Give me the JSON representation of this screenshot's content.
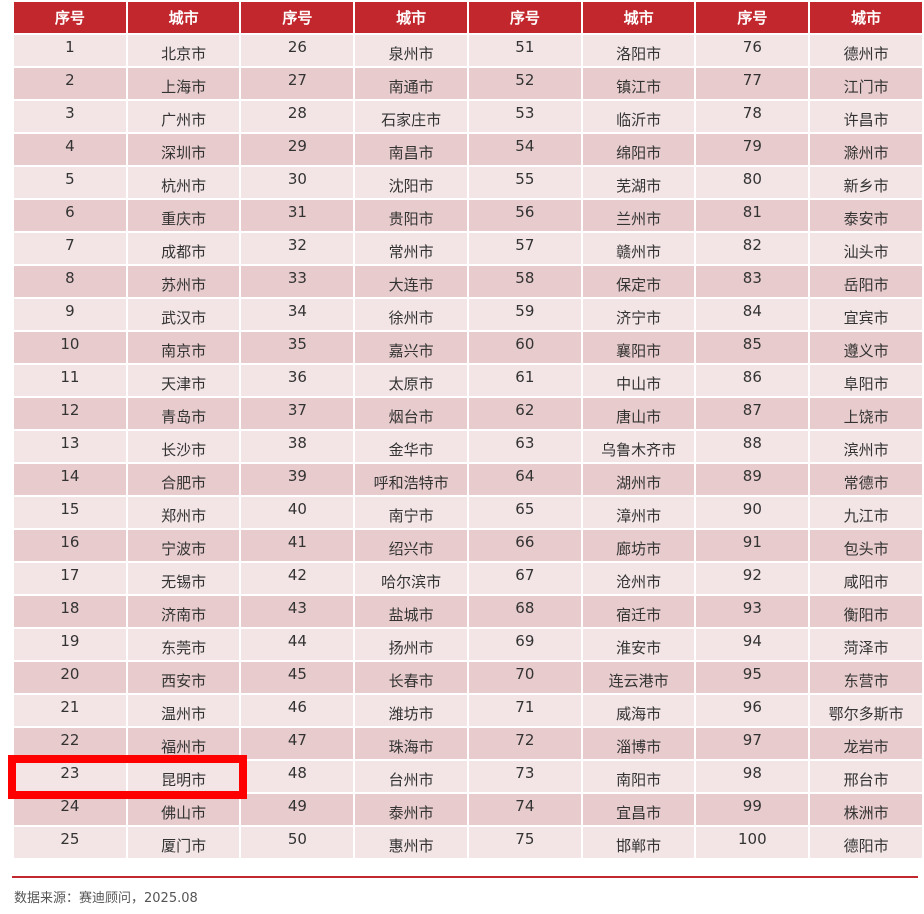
{
  "table": {
    "headers": [
      "序号",
      "城市",
      "序号",
      "城市",
      "序号",
      "城市",
      "序号",
      "城市"
    ],
    "cities": [
      "北京市",
      "上海市",
      "广州市",
      "深圳市",
      "杭州市",
      "重庆市",
      "成都市",
      "苏州市",
      "武汉市",
      "南京市",
      "天津市",
      "青岛市",
      "长沙市",
      "合肥市",
      "郑州市",
      "宁波市",
      "无锡市",
      "济南市",
      "东莞市",
      "西安市",
      "温州市",
      "福州市",
      "昆明市",
      "佛山市",
      "厦门市",
      "泉州市",
      "南通市",
      "石家庄市",
      "南昌市",
      "沈阳市",
      "贵阳市",
      "常州市",
      "大连市",
      "徐州市",
      "嘉兴市",
      "太原市",
      "烟台市",
      "金华市",
      "呼和浩特市",
      "南宁市",
      "绍兴市",
      "哈尔滨市",
      "盐城市",
      "扬州市",
      "长春市",
      "潍坊市",
      "珠海市",
      "台州市",
      "泰州市",
      "惠州市",
      "洛阳市",
      "镇江市",
      "临沂市",
      "绵阳市",
      "芜湖市",
      "兰州市",
      "赣州市",
      "保定市",
      "济宁市",
      "襄阳市",
      "中山市",
      "唐山市",
      "乌鲁木齐市",
      "湖州市",
      "漳州市",
      "廊坊市",
      "沧州市",
      "宿迁市",
      "淮安市",
      "连云港市",
      "威海市",
      "淄博市",
      "南阳市",
      "宜昌市",
      "邯郸市",
      "德州市",
      "江门市",
      "许昌市",
      "滁州市",
      "新乡市",
      "泰安市",
      "汕头市",
      "岳阳市",
      "宜宾市",
      "遵义市",
      "阜阳市",
      "上饶市",
      "滨州市",
      "常德市",
      "九江市",
      "包头市",
      "咸阳市",
      "衡阳市",
      "菏泽市",
      "东营市",
      "鄂尔多斯市",
      "龙岩市",
      "邢台市",
      "株洲市",
      "德阳市"
    ],
    "highlighted_rank": 23
  },
  "footer": {
    "source": "数据来源：赛迪顾问，2025.08"
  },
  "colors": {
    "header": "#c1272d",
    "row_light": "#f3e5e6",
    "row_dark": "#e8cccd",
    "highlight": "#ff0000"
  }
}
